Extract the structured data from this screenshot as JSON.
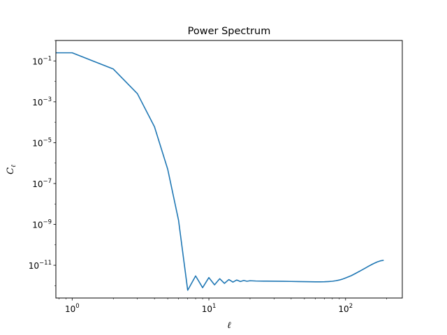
{
  "chart_data": {
    "type": "line",
    "title": "Power Spectrum",
    "xlabel": "ℓ",
    "ylabel": "C",
    "ylabel_subscript": "ℓ",
    "xscale": "log",
    "yscale": "log",
    "xlim": [
      0.76,
      260
    ],
    "ylim": [
      2.5e-13,
      1.0
    ],
    "grid": false,
    "legend": "none",
    "x_ticks": [
      {
        "value": 1,
        "base": "10",
        "exp": "0"
      },
      {
        "value": 10,
        "base": "10",
        "exp": "1"
      },
      {
        "value": 100,
        "base": "10",
        "exp": "2"
      }
    ],
    "y_ticks": [
      {
        "value": 0.1,
        "base": "10",
        "exp": "−1"
      },
      {
        "value": 0.001,
        "base": "10",
        "exp": "−3"
      },
      {
        "value": 1e-05,
        "base": "10",
        "exp": "−5"
      },
      {
        "value": 1e-07,
        "base": "10",
        "exp": "−7"
      },
      {
        "value": 1e-09,
        "base": "10",
        "exp": "−9"
      },
      {
        "value": 1e-11,
        "base": "10",
        "exp": "−11"
      }
    ],
    "series": [
      {
        "color": "#1f77b4",
        "x": [
          0,
          1,
          2,
          3,
          4,
          5,
          6,
          7,
          8,
          9,
          10,
          11,
          12,
          13,
          14,
          15,
          16,
          17,
          18,
          19,
          20,
          22,
          25,
          30,
          35,
          40,
          45,
          50,
          55,
          60,
          65,
          70,
          75,
          80,
          85,
          90,
          95,
          100,
          110,
          120,
          130,
          140,
          150,
          160,
          170,
          180,
          190
        ],
        "y": [
          0.25,
          0.25,
          0.04,
          0.0025,
          6e-05,
          5e-07,
          1.6e-09,
          6e-13,
          3e-12,
          8e-13,
          2.5e-12,
          1.1e-12,
          2.2e-12,
          1.3e-12,
          2e-12,
          1.5e-12,
          1.9e-12,
          1.6e-12,
          1.8e-12,
          1.65e-12,
          1.75e-12,
          1.7e-12,
          1.68e-12,
          1.66e-12,
          1.64e-12,
          1.62e-12,
          1.6e-12,
          1.58e-12,
          1.56e-12,
          1.55e-12,
          1.55e-12,
          1.56e-12,
          1.6e-12,
          1.65e-12,
          1.75e-12,
          1.9e-12,
          2.1e-12,
          2.4e-12,
          3.1e-12,
          4.2e-12,
          5.6e-12,
          7.4e-12,
          9.6e-12,
          1.2e-11,
          1.45e-11,
          1.65e-11,
          1.75e-11
        ]
      }
    ]
  }
}
